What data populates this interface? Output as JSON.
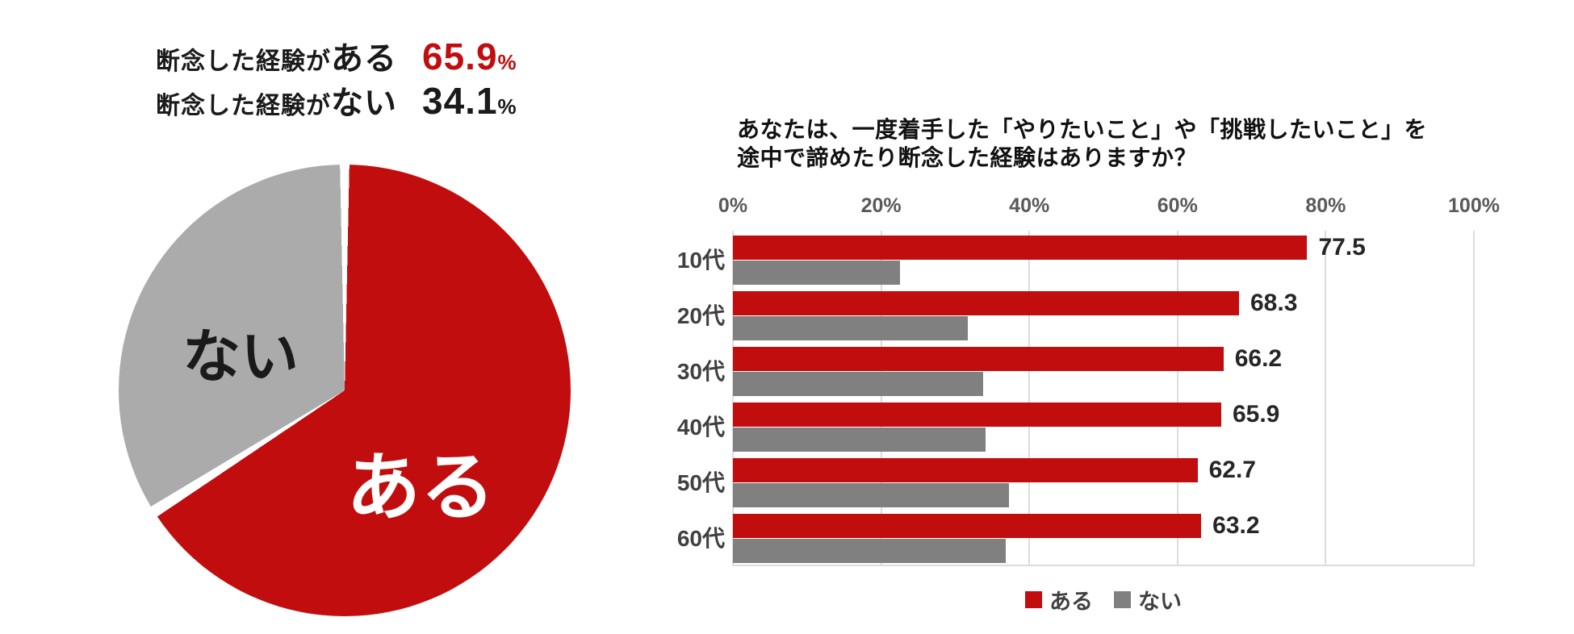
{
  "summary": {
    "rows": [
      {
        "prefix": "断念した経験が",
        "keyword": "ある",
        "value": "65.9",
        "unit": "%",
        "value_color": "#c20d0f"
      },
      {
        "prefix": "断念した経験が",
        "keyword": "ない",
        "value": "34.1",
        "unit": "%",
        "value_color": "#1a1a1a"
      }
    ]
  },
  "pie": {
    "labels": {
      "yes": "ある",
      "no": "ない"
    },
    "values": {
      "yes": 65.9,
      "no": 34.1
    },
    "colors": {
      "yes": "#c20d0f",
      "no": "#ababab",
      "separator": "#ffffff"
    }
  },
  "bar_chart": {
    "title_line1": "あなたは、一度着手した「やりたいこと」や「挑戦したいこと」を",
    "title_line2": "途中で諦めたり断念した経験はありますか？",
    "x_ticks": [
      "0%",
      "20%",
      "40%",
      "60%",
      "80%",
      "100%"
    ],
    "categories": [
      "10代",
      "20代",
      "30代",
      "40代",
      "50代",
      "60代"
    ],
    "series": [
      {
        "name": "ある",
        "color": "#c20d0f",
        "values": [
          77.5,
          68.3,
          66.2,
          65.9,
          62.7,
          63.2
        ],
        "labeled": true
      },
      {
        "name": "ない",
        "color": "#808080",
        "values": [
          22.5,
          31.7,
          33.8,
          34.1,
          37.3,
          36.8
        ],
        "labeled": false
      }
    ],
    "legend": [
      {
        "label": "ある",
        "color": "#c20d0f"
      },
      {
        "label": "ない",
        "color": "#808080"
      }
    ]
  },
  "chart_data": [
    {
      "type": "pie",
      "labels": [
        "ある",
        "ない"
      ],
      "values": [
        65.9,
        34.1
      ],
      "colors": [
        "#c20d0f",
        "#ababab"
      ],
      "annotations": [
        "断念した経験がある 65.9%",
        "断念した経験がない 34.1%"
      ],
      "start_angle_deg": 0,
      "direction": "clockwise"
    },
    {
      "type": "bar",
      "orientation": "horizontal",
      "title": "あなたは、一度着手した「やりたいこと」や「挑戦したいこと」を途中で諦めたり断念した経験はありますか？",
      "categories": [
        "10代",
        "20代",
        "30代",
        "40代",
        "50代",
        "60代"
      ],
      "series": [
        {
          "name": "ある",
          "values": [
            77.5,
            68.3,
            66.2,
            65.9,
            62.7,
            63.2
          ]
        },
        {
          "name": "ない",
          "values": [
            22.5,
            31.7,
            33.8,
            34.1,
            37.3,
            36.8
          ]
        }
      ],
      "data_labels_series": "ある",
      "data_labels": [
        77.5,
        68.3,
        66.2,
        65.9,
        62.7,
        63.2
      ],
      "xlim": [
        0,
        100
      ],
      "x_ticks": [
        "0%",
        "20%",
        "40%",
        "60%",
        "80%",
        "100%"
      ],
      "grid": true,
      "legend_position": "bottom"
    }
  ]
}
